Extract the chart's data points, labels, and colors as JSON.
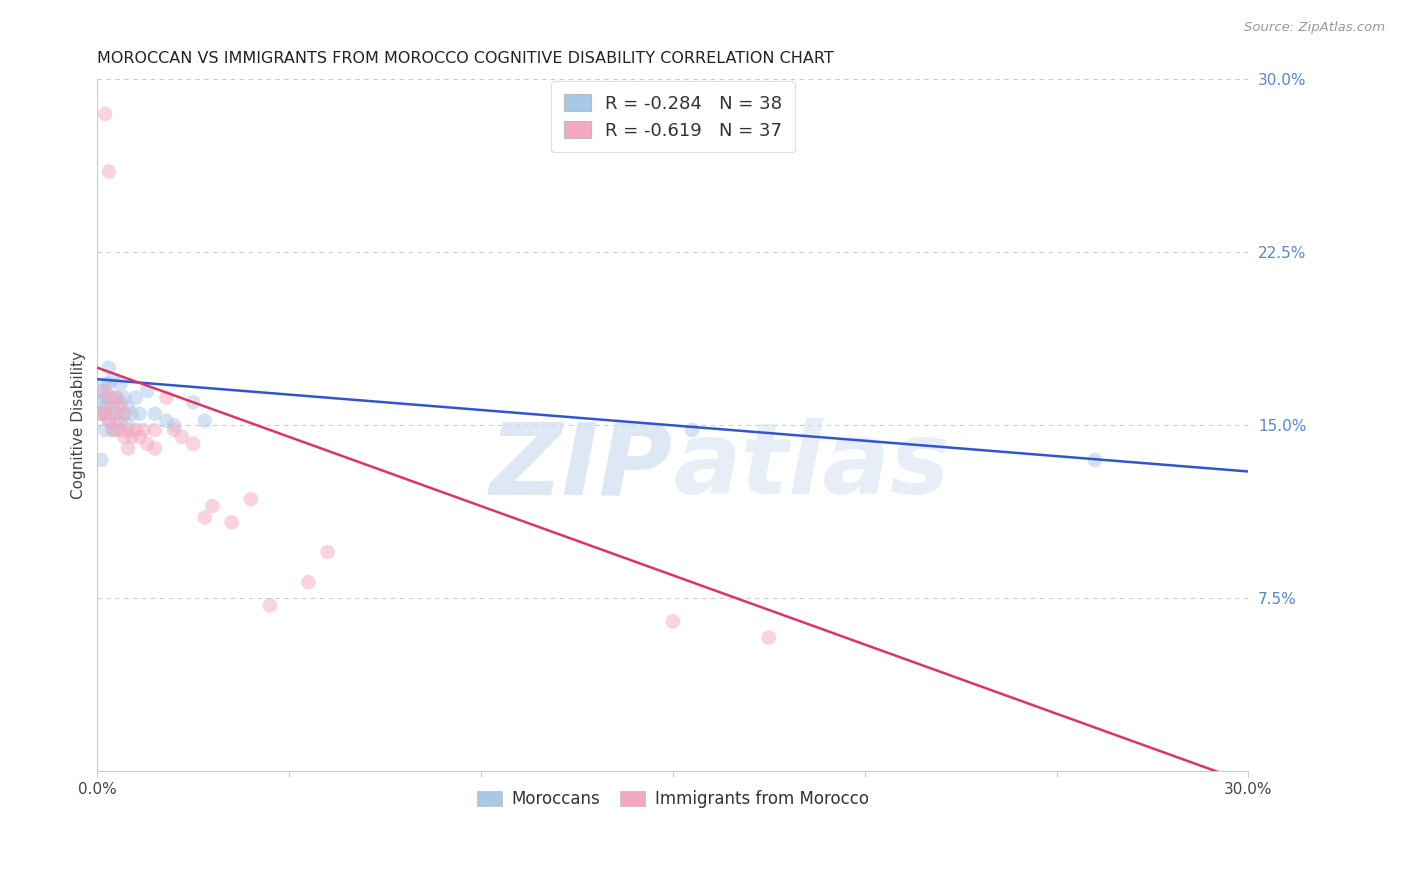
{
  "title": "MOROCCAN VS IMMIGRANTS FROM MOROCCO COGNITIVE DISABILITY CORRELATION CHART",
  "source": "Source: ZipAtlas.com",
  "ylabel": "Cognitive Disability",
  "xlim": [
    0.0,
    0.3
  ],
  "ylim": [
    0.0,
    0.3
  ],
  "yticks": [
    0.075,
    0.15,
    0.225,
    0.3
  ],
  "ytick_labels": [
    "7.5%",
    "15.0%",
    "22.5%",
    "30.0%"
  ],
  "blue_R": -0.284,
  "blue_N": 38,
  "pink_R": -0.619,
  "pink_N": 37,
  "blue_color": "#a8c8e8",
  "pink_color": "#f4a8c0",
  "blue_line_color": "#3355cc",
  "pink_line_color": "#dd3366",
  "legend_label_blue": "Moroccans",
  "legend_label_pink": "Immigrants from Morocco",
  "watermark_color": "#d0dff0",
  "background_color": "#ffffff",
  "grid_color": "#cccccc",
  "right_tick_color": "#5588cc",
  "scatter_alpha": 0.5,
  "scatter_size": 110,
  "blue_line_x0": 0.0,
  "blue_line_y0": 0.17,
  "blue_line_x1": 0.3,
  "blue_line_y1": 0.13,
  "pink_line_x0": 0.0,
  "pink_line_y0": 0.175,
  "pink_line_x1": 0.3,
  "pink_line_y1": -0.005,
  "blue_x": [
    0.001,
    0.001,
    0.001,
    0.002,
    0.002,
    0.002,
    0.002,
    0.002,
    0.003,
    0.003,
    0.003,
    0.003,
    0.004,
    0.004,
    0.004,
    0.004,
    0.005,
    0.005,
    0.005,
    0.006,
    0.006,
    0.006,
    0.007,
    0.007,
    0.008,
    0.008,
    0.009,
    0.01,
    0.011,
    0.013,
    0.015,
    0.018,
    0.02,
    0.025,
    0.028,
    0.155,
    0.26,
    0.001
  ],
  "blue_y": [
    0.165,
    0.155,
    0.16,
    0.155,
    0.162,
    0.168,
    0.158,
    0.148,
    0.16,
    0.168,
    0.175,
    0.152,
    0.155,
    0.162,
    0.17,
    0.148,
    0.155,
    0.162,
    0.148,
    0.152,
    0.16,
    0.168,
    0.155,
    0.162,
    0.15,
    0.158,
    0.155,
    0.162,
    0.155,
    0.165,
    0.155,
    0.152,
    0.15,
    0.16,
    0.152,
    0.148,
    0.135,
    0.135
  ],
  "pink_x": [
    0.001,
    0.002,
    0.002,
    0.003,
    0.003,
    0.004,
    0.004,
    0.005,
    0.005,
    0.006,
    0.006,
    0.007,
    0.007,
    0.008,
    0.008,
    0.009,
    0.01,
    0.011,
    0.012,
    0.013,
    0.015,
    0.015,
    0.018,
    0.02,
    0.022,
    0.025,
    0.028,
    0.03,
    0.035,
    0.04,
    0.15,
    0.175,
    0.002,
    0.003,
    0.06,
    0.055,
    0.045
  ],
  "pink_y": [
    0.155,
    0.165,
    0.155,
    0.162,
    0.152,
    0.158,
    0.148,
    0.162,
    0.152,
    0.158,
    0.148,
    0.155,
    0.145,
    0.148,
    0.14,
    0.145,
    0.148,
    0.145,
    0.148,
    0.142,
    0.14,
    0.148,
    0.162,
    0.148,
    0.145,
    0.142,
    0.11,
    0.115,
    0.108,
    0.118,
    0.065,
    0.058,
    0.285,
    0.26,
    0.095,
    0.082,
    0.072
  ]
}
